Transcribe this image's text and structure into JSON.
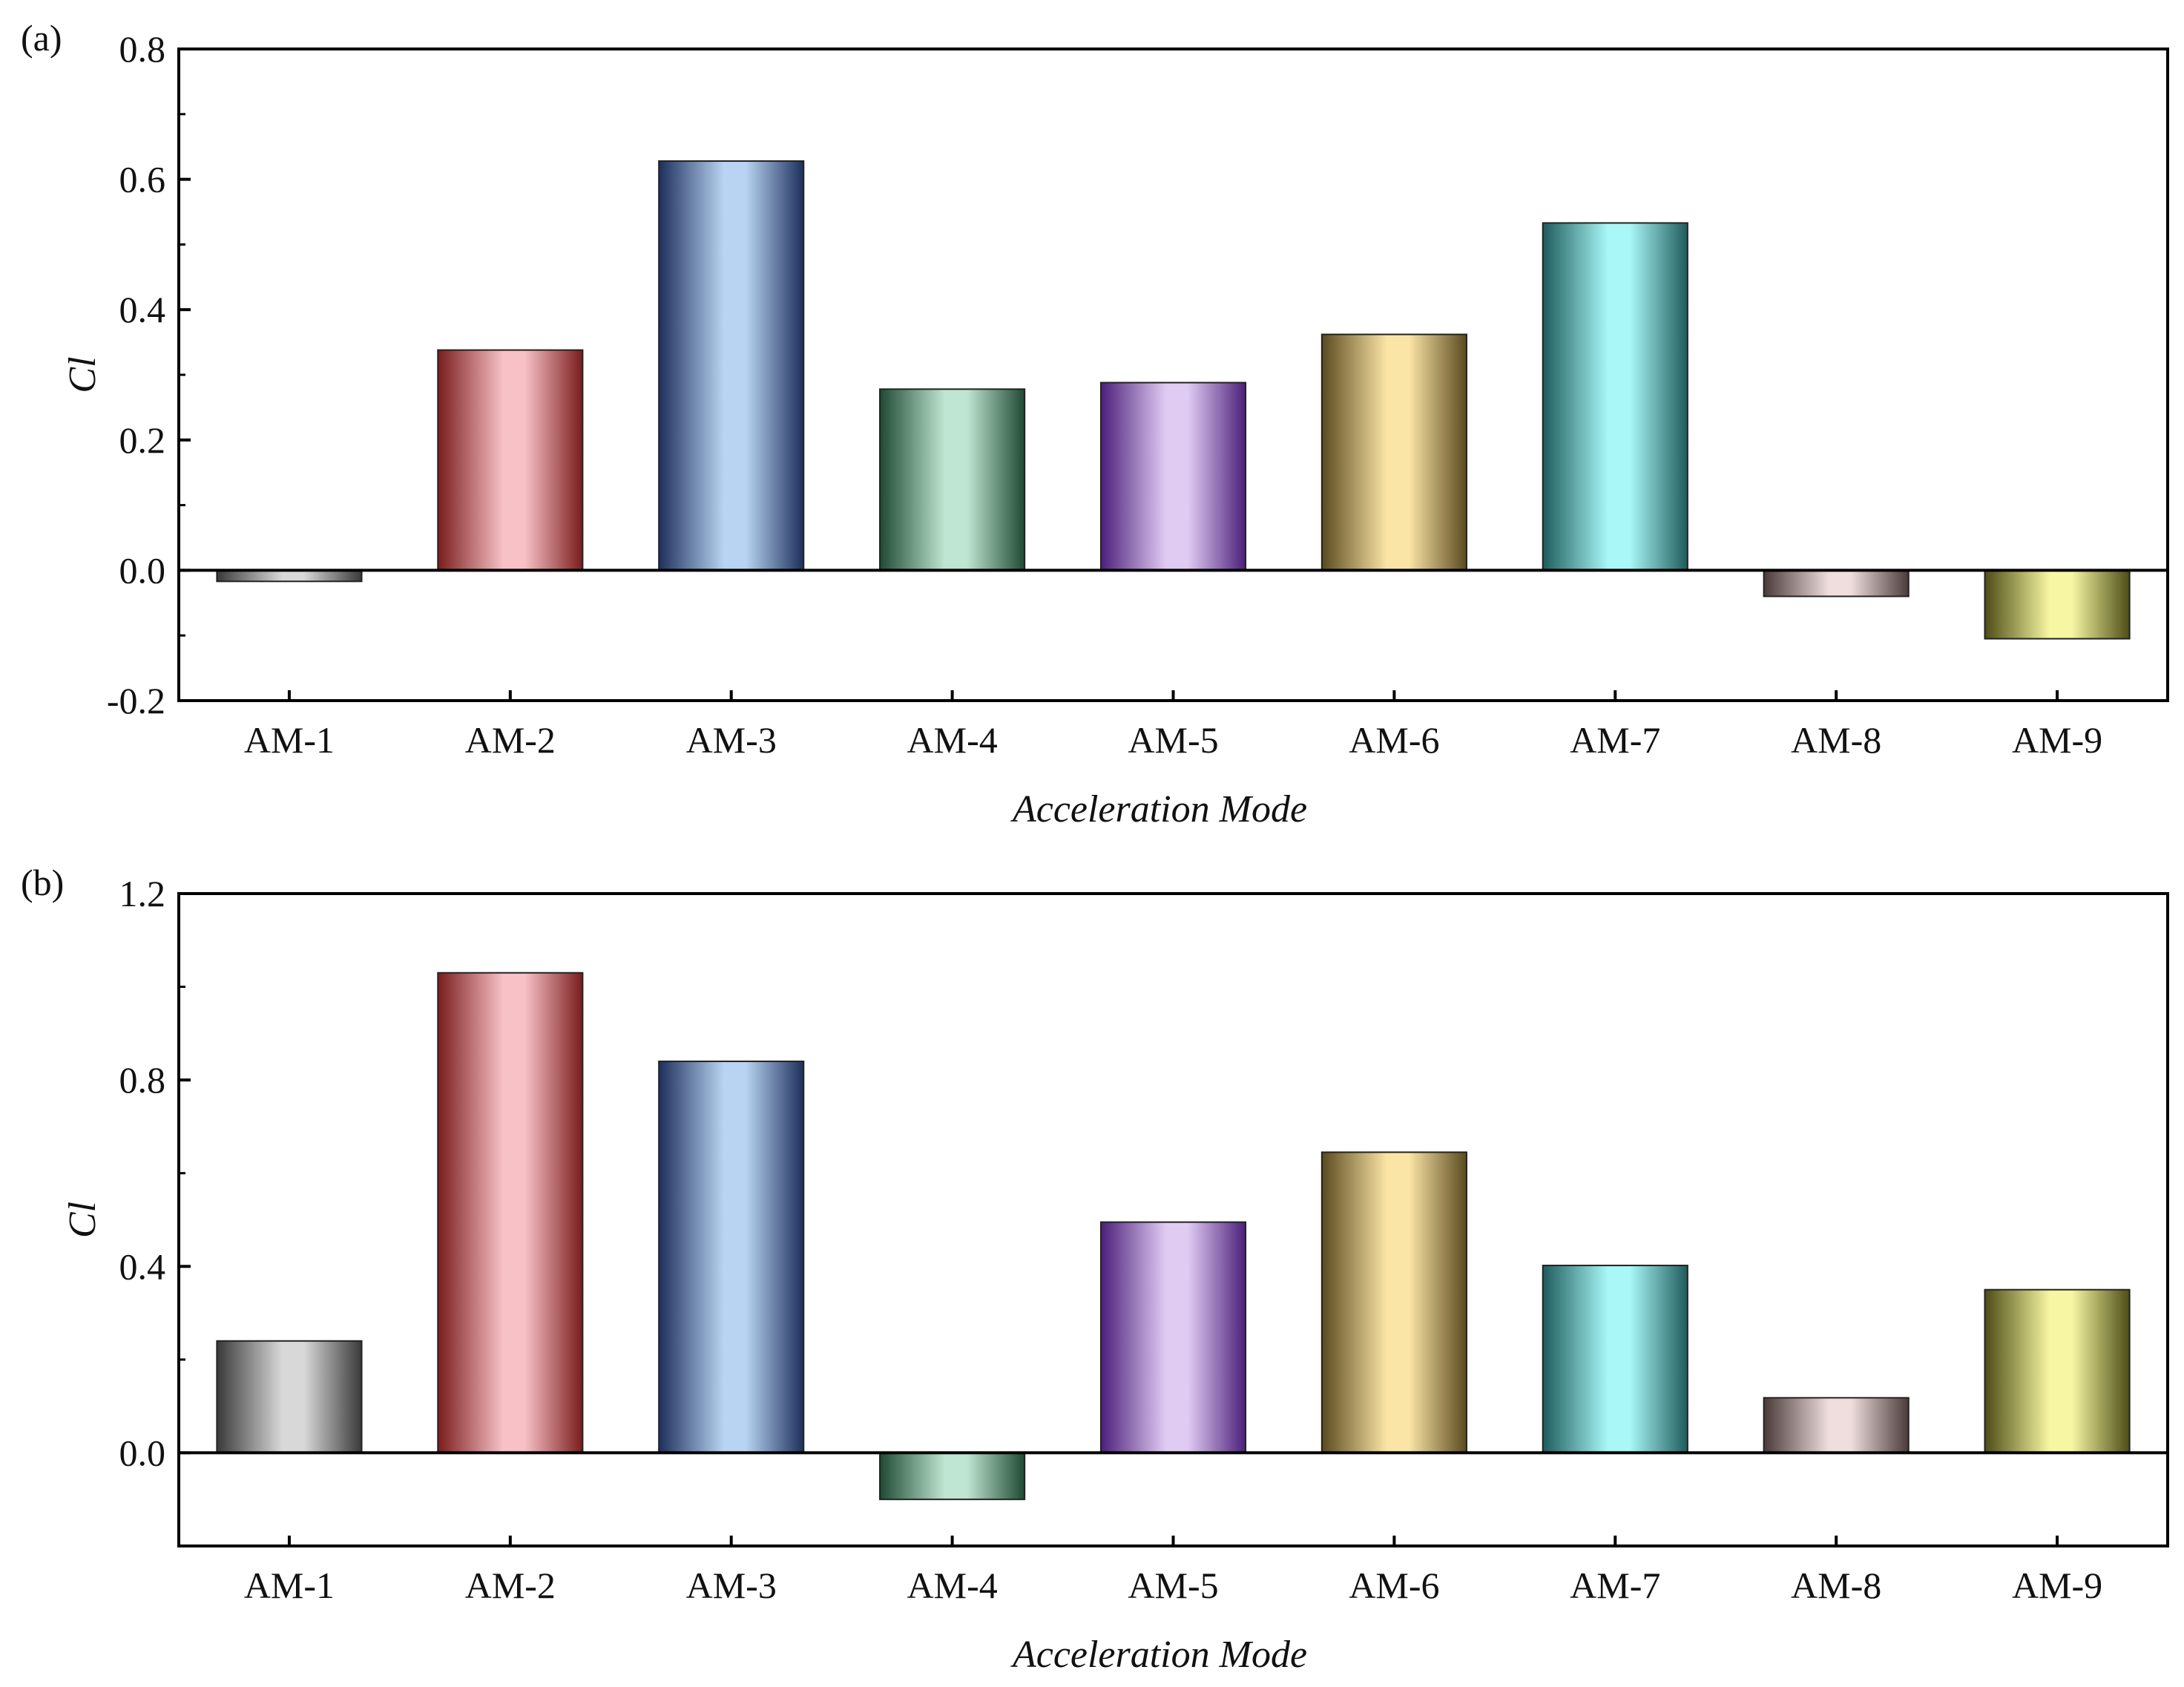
{
  "chart_data": [
    {
      "type": "bar",
      "panel_label": "(a)",
      "categories": [
        "AM-1",
        "AM-2",
        "AM-3",
        "AM-4",
        "AM-5",
        "AM-6",
        "AM-7",
        "AM-8",
        "AM-9"
      ],
      "values": [
        -0.017,
        0.338,
        0.628,
        0.278,
        0.288,
        0.362,
        0.533,
        -0.04,
        -0.105
      ],
      "xlabel": "Acceleration Mode",
      "ylabel": "Cl",
      "ylim": [
        -0.2,
        0.8
      ],
      "yticks": [
        -0.2,
        0.0,
        0.2,
        0.4,
        0.6,
        0.8
      ],
      "ytick_labels": [
        "-0.2",
        "0.0",
        "0.2",
        "0.4",
        "0.6",
        "0.8"
      ],
      "grid": false,
      "zero_line": true
    },
    {
      "type": "bar",
      "panel_label": "(b)",
      "categories": [
        "AM-1",
        "AM-2",
        "AM-3",
        "AM-4",
        "AM-5",
        "AM-6",
        "AM-7",
        "AM-8",
        "AM-9"
      ],
      "values": [
        0.24,
        1.03,
        0.84,
        -0.1,
        0.495,
        0.645,
        0.402,
        0.118,
        0.35
      ],
      "xlabel": "Acceleration Mode",
      "ylabel": "Cl",
      "ylim": [
        -0.2,
        1.2
      ],
      "yticks": [
        0.0,
        0.4,
        0.8,
        1.2
      ],
      "ytick_labels": [
        "0.0",
        "0.4",
        "0.8",
        "1.2"
      ],
      "grid": false,
      "zero_line": true
    }
  ],
  "bar_colors": [
    {
      "dark": "#3a3a3a",
      "light": "#d8d8d8"
    },
    {
      "dark": "#7a1c1c",
      "light": "#f7c1c6"
    },
    {
      "dark": "#1d2f5c",
      "light": "#b9d4f2"
    },
    {
      "dark": "#1f4a33",
      "light": "#bfe6d2"
    },
    {
      "dark": "#4b1f7a",
      "light": "#e0cbf3"
    },
    {
      "dark": "#5a4a1f",
      "light": "#fbe5a6"
    },
    {
      "dark": "#1e5c5c",
      "light": "#a9f7f7"
    },
    {
      "dark": "#4a3a3a",
      "light": "#f0dede"
    },
    {
      "dark": "#4d4d16",
      "light": "#f7f7a3"
    }
  ]
}
